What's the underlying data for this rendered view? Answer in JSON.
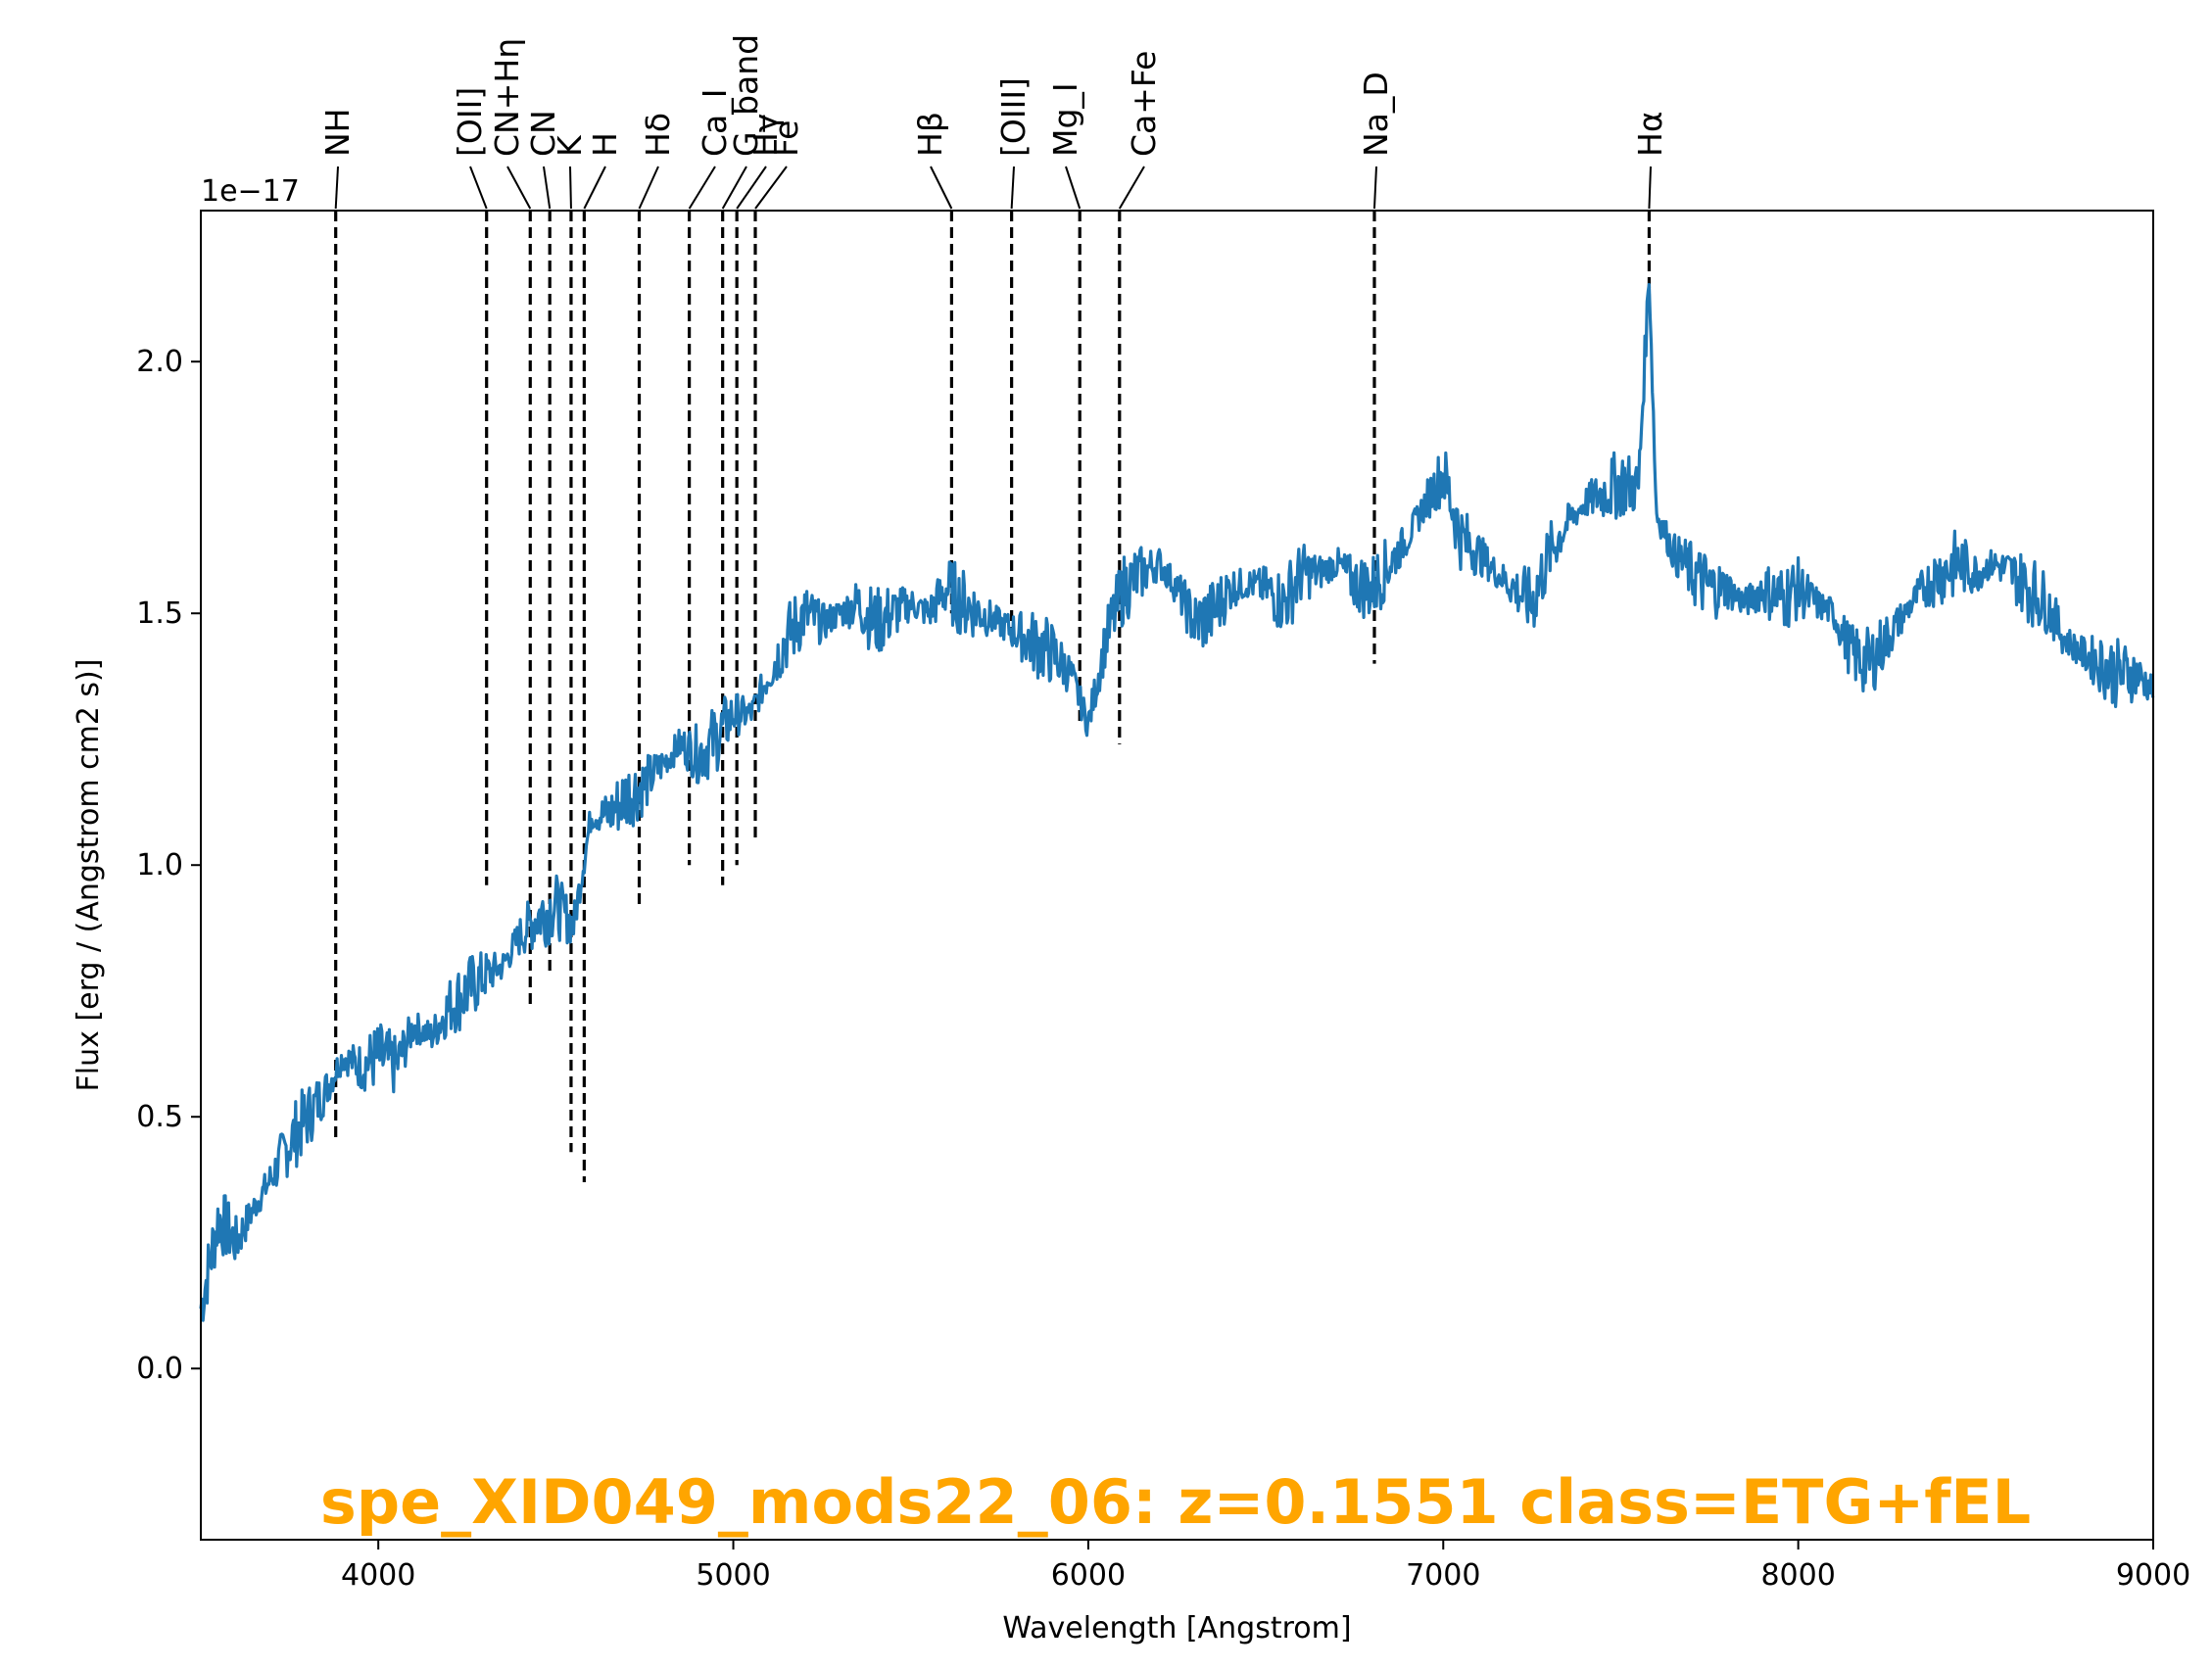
{
  "chart_data": {
    "type": "line",
    "xlabel": "Wavelength [Angstrom]",
    "ylabel": "Flux [erg / (Angstrom cm2 s)]",
    "y_offset_label": "1e−17",
    "xlim": [
      3500,
      9000
    ],
    "ylim": [
      -0.34,
      2.3
    ],
    "x_ticks": [
      4000,
      5000,
      6000,
      7000,
      8000,
      9000
    ],
    "x_tick_labels": [
      "4000",
      "5000",
      "6000",
      "7000",
      "8000",
      "9000"
    ],
    "y_ticks": [
      0.0,
      0.5,
      1.0,
      1.5,
      2.0
    ],
    "y_tick_labels": [
      "0.0",
      "0.5",
      "1.0",
      "1.5",
      "2.0"
    ],
    "grid": false,
    "series": [
      {
        "color": "#1f77b4",
        "x": [
          3500,
          3550,
          3600,
          3650,
          3700,
          3750,
          3800,
          3850,
          3900,
          3950,
          4000,
          4050,
          4100,
          4150,
          4200,
          4250,
          4300,
          4350,
          4400,
          4450,
          4500,
          4550,
          4600,
          4650,
          4700,
          4750,
          4800,
          4850,
          4900,
          4950,
          5000,
          5050,
          5100,
          5150,
          5200,
          5250,
          5300,
          5350,
          5400,
          5450,
          5500,
          5550,
          5600,
          5650,
          5700,
          5750,
          5800,
          5850,
          5900,
          5950,
          6000,
          6050,
          6100,
          6150,
          6200,
          6250,
          6300,
          6350,
          6400,
          6450,
          6500,
          6550,
          6600,
          6650,
          6700,
          6750,
          6800,
          6850,
          6900,
          6950,
          7000,
          7050,
          7100,
          7150,
          7200,
          7250,
          7300,
          7350,
          7400,
          7450,
          7500,
          7550,
          7580,
          7600,
          7650,
          7700,
          7750,
          7800,
          7850,
          7900,
          7950,
          8000,
          8050,
          8100,
          8150,
          8200,
          8250,
          8300,
          8350,
          8400,
          8450,
          8500,
          8550,
          8600,
          8650,
          8700,
          8750,
          8800,
          8850,
          8900,
          8950,
          9000
        ],
        "y": [
          0.12,
          0.3,
          0.25,
          0.32,
          0.38,
          0.45,
          0.5,
          0.55,
          0.62,
          0.6,
          0.62,
          0.6,
          0.68,
          0.66,
          0.72,
          0.75,
          0.78,
          0.8,
          0.86,
          0.9,
          0.92,
          0.88,
          1.1,
          1.1,
          1.14,
          1.16,
          1.2,
          1.24,
          1.22,
          1.25,
          1.3,
          1.3,
          1.38,
          1.45,
          1.5,
          1.48,
          1.5,
          1.52,
          1.48,
          1.5,
          1.52,
          1.5,
          1.55,
          1.52,
          1.5,
          1.48,
          1.46,
          1.44,
          1.42,
          1.38,
          1.28,
          1.45,
          1.55,
          1.58,
          1.6,
          1.55,
          1.48,
          1.5,
          1.55,
          1.56,
          1.55,
          1.52,
          1.58,
          1.58,
          1.6,
          1.56,
          1.55,
          1.6,
          1.65,
          1.72,
          1.78,
          1.65,
          1.62,
          1.58,
          1.55,
          1.52,
          1.62,
          1.68,
          1.72,
          1.74,
          1.76,
          1.75,
          2.18,
          1.7,
          1.62,
          1.58,
          1.55,
          1.55,
          1.52,
          1.55,
          1.53,
          1.55,
          1.52,
          1.5,
          1.42,
          1.4,
          1.45,
          1.5,
          1.55,
          1.58,
          1.6,
          1.58,
          1.6,
          1.58,
          1.55,
          1.52,
          1.45,
          1.42,
          1.4,
          1.38,
          1.38,
          1.35
        ]
      }
    ],
    "lines": [
      {
        "label": "NH",
        "x": 3880,
        "y_bottom": 0.45
      },
      {
        "label": "[OII]",
        "x": 4305,
        "y_bottom": 0.96
      },
      {
        "label": "CN+Hη",
        "x": 4428,
        "y_bottom": 0.72
      },
      {
        "label": "CN",
        "x": 4483,
        "y_bottom": 0.78
      },
      {
        "label": "K",
        "x": 4543,
        "y_bottom": 0.43
      },
      {
        "label": "H",
        "x": 4580,
        "y_bottom": 0.37
      },
      {
        "label": "Hδ",
        "x": 4735,
        "y_bottom": 0.92
      },
      {
        "label": "Ca_I",
        "x": 4876,
        "y_bottom": 1.0
      },
      {
        "label": "G_band",
        "x": 4970,
        "y_bottom": 0.96
      },
      {
        "label": "Hγ",
        "x": 5010,
        "y_bottom": 1.0
      },
      {
        "label": "Fe",
        "x": 5062,
        "y_bottom": 1.05
      },
      {
        "label": "Hβ",
        "x": 5615,
        "y_bottom": 1.5
      },
      {
        "label": "[OIII]",
        "x": 5784,
        "y_bottom": 1.45
      },
      {
        "label": "Mg_I",
        "x": 5976,
        "y_bottom": 1.28
      },
      {
        "label": "Ca+Fe",
        "x": 6088,
        "y_bottom": 1.24
      },
      {
        "label": "Na_D",
        "x": 6806,
        "y_bottom": 1.4
      },
      {
        "label": "Hα",
        "x": 7580,
        "y_bottom": 2.1
      }
    ],
    "annotation": {
      "text": "spe_XID049_mods22_06: z=0.1551 class=ETG+fEL",
      "color": "#ffa500"
    }
  }
}
